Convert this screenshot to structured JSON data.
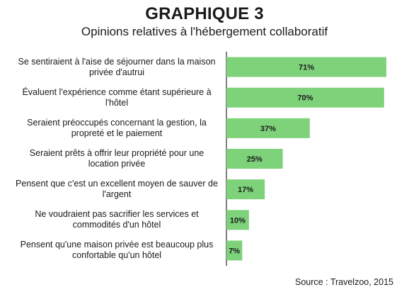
{
  "title": "GRAPHIQUE 3",
  "subtitle": "Opinions relatives à l'hébergement collaboratif",
  "source": "Source : Travelzoo, 2015",
  "colors": {
    "bar": "#7ed27a",
    "axis": "#000000"
  },
  "chart_data": {
    "type": "bar",
    "orientation": "horizontal",
    "title": "GRAPHIQUE 3",
    "subtitle": "Opinions relatives à l'hébergement collaboratif",
    "categories": [
      "Se sentiraient à l'aise de séjourner dans la maison privée d'autrui",
      "Évaluent l'expérience comme étant supérieure à l'hôtel",
      "Seraient préoccupés concernant la gestion, la propreté et le paiement",
      "Seraient prêts à offrir leur propriété pour une location privée",
      "Pensent que c'est un excellent moyen de sauver de l'argent",
      "Ne voudraient pas sacrifier les services et commodités d'un hôtel",
      "Pensent qu'une maison privée est beaucoup plus confortable qu'un hôtel"
    ],
    "values": [
      71,
      70,
      37,
      25,
      17,
      10,
      7
    ],
    "value_labels": [
      "71%",
      "70%",
      "37%",
      "25%",
      "17%",
      "10%",
      "7%"
    ],
    "xlim": [
      0,
      71
    ],
    "grid": false,
    "legend": "none"
  }
}
